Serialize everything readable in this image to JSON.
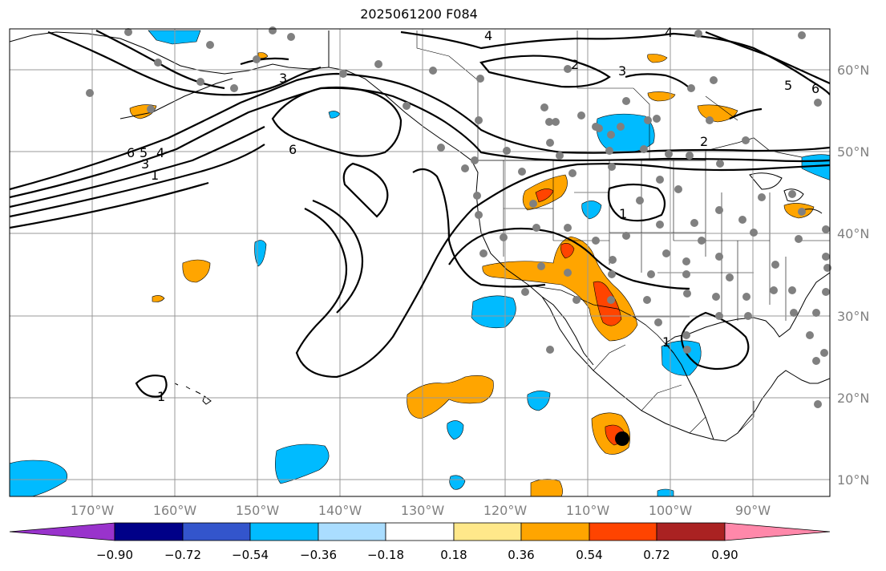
{
  "title": "2025061200 F084",
  "map": {
    "projection": "cylindrical",
    "lon_labels": [
      "170°W",
      "160°W",
      "150°W",
      "140°W",
      "130°W",
      "120°W",
      "110°W",
      "100°W",
      "90°W"
    ],
    "lat_labels": [
      "60°N",
      "50°N",
      "40°N",
      "30°N",
      "20°N",
      "10°N"
    ],
    "grid": true,
    "contour_labels": [
      "4",
      "4",
      "3",
      "2",
      "3",
      "5",
      "6",
      "6",
      "6",
      "5",
      "4",
      "3",
      "1",
      "2",
      "1",
      "1",
      "1"
    ]
  },
  "colorbar": {
    "ticks": [
      "−0.90",
      "−0.72",
      "−0.54",
      "−0.36",
      "−0.18",
      "0.18",
      "0.36",
      "0.54",
      "0.72",
      "0.90"
    ],
    "colors": [
      "#9933cc",
      "#000088",
      "#3355cc",
      "#00bbff",
      "#aaddff",
      "#ffffff",
      "#ffe88a",
      "#ffa500",
      "#ff4400",
      "#aa2222",
      "#ff88aa"
    ]
  },
  "colors": {
    "stations": "#808080",
    "marker": "#000000",
    "contours": "#000000"
  }
}
